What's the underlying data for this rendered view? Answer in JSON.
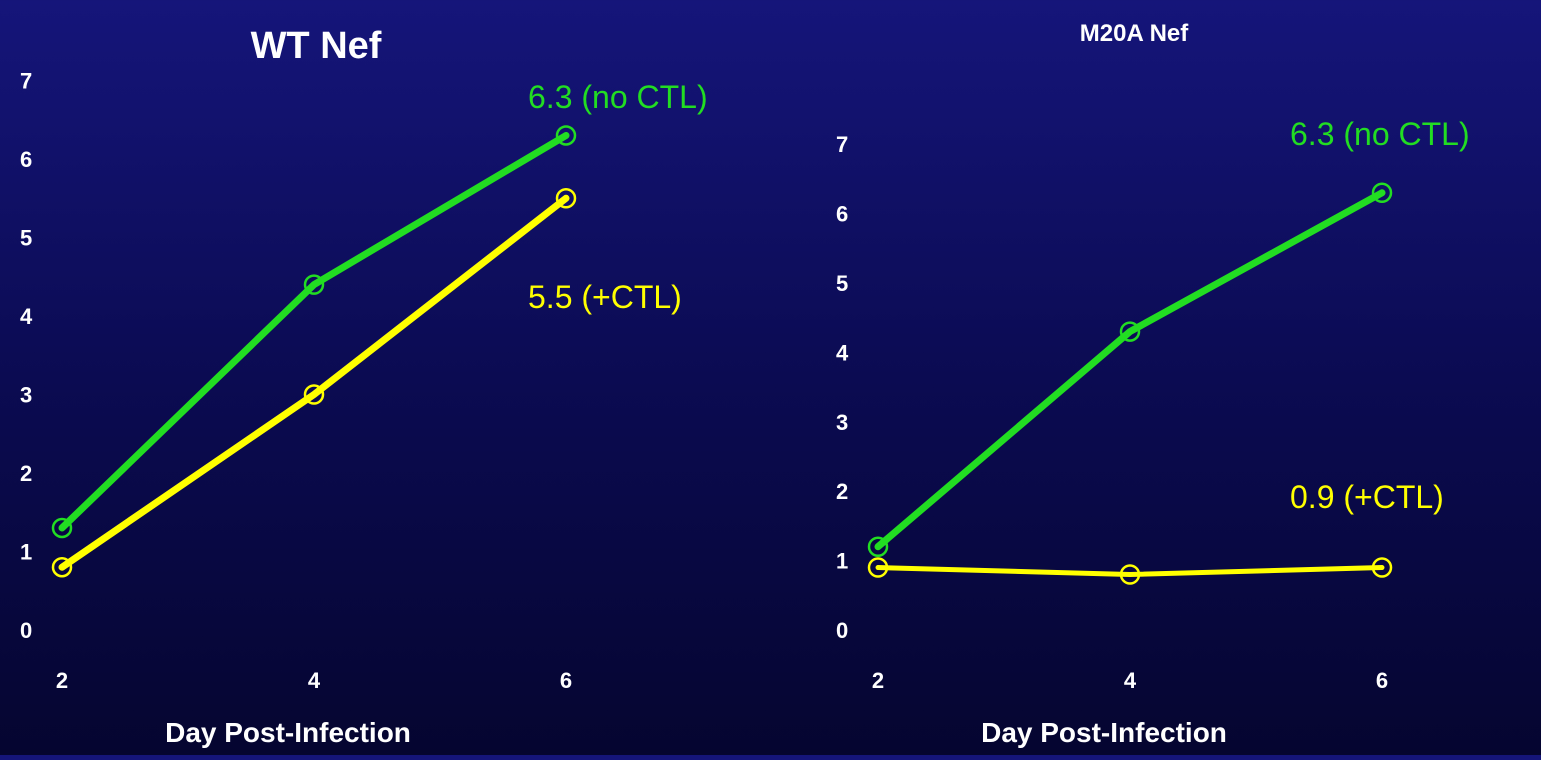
{
  "chart_data": [
    {
      "type": "line",
      "title": "WT Nef",
      "xlabel": "Day Post-Infection",
      "ylabel": "",
      "x": [
        2,
        4,
        6
      ],
      "x_ticks": [
        "2",
        "4",
        "6"
      ],
      "y_ticks": [
        "0",
        "1",
        "2",
        "3",
        "4",
        "5",
        "6",
        "7"
      ],
      "ylim": [
        0,
        7
      ],
      "grid": false,
      "series": [
        {
          "values": [
            1.3,
            4.4,
            6.3
          ],
          "color": "#22dd22",
          "annotation": "6.3 (no CTL)"
        },
        {
          "values": [
            0.8,
            3.0,
            5.5
          ],
          "color": "#ffff00",
          "annotation": "5.5 (+CTL)"
        }
      ]
    },
    {
      "type": "line",
      "title": "M20A Nef",
      "xlabel": "Day Post-Infection",
      "ylabel": "",
      "x": [
        2,
        4,
        6
      ],
      "x_ticks": [
        "2",
        "4",
        "6"
      ],
      "y_ticks": [
        "0",
        "1",
        "2",
        "3",
        "4",
        "5",
        "6",
        "7"
      ],
      "ylim": [
        0,
        7
      ],
      "grid": false,
      "series": [
        {
          "values": [
            1.2,
            4.3,
            6.3
          ],
          "color": "#22dd22",
          "annotation": "6.3 (no CTL)"
        },
        {
          "values": [
            0.9,
            0.8,
            0.9
          ],
          "color": "#ffff00",
          "annotation": "0.9 (+CTL)"
        }
      ]
    }
  ]
}
